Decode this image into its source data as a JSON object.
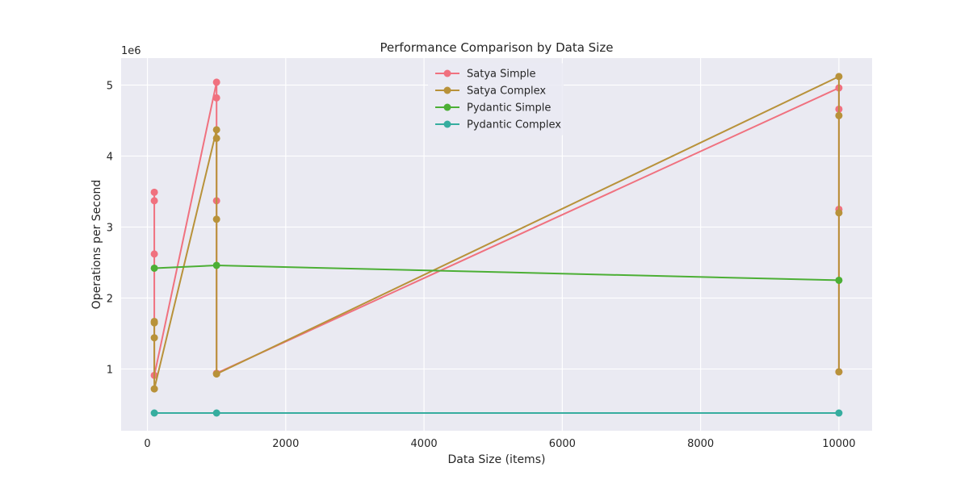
{
  "chart_data": {
    "type": "line",
    "title": "Performance Comparison by Data Size",
    "xlabel": "Data Size (items)",
    "ylabel": "Operations per Second",
    "y_offset_label": "1e6",
    "xlim": [
      -380,
      10480
    ],
    "ylim": [
      130000,
      5380000
    ],
    "xticks": [
      0,
      2000,
      4000,
      6000,
      8000,
      10000
    ],
    "yticks": [
      1000000,
      2000000,
      3000000,
      4000000,
      5000000
    ],
    "xtick_labels": [
      "0",
      "2000",
      "4000",
      "6000",
      "8000",
      "10000"
    ],
    "ytick_labels": [
      "1",
      "2",
      "3",
      "4",
      "5"
    ],
    "grid": true,
    "legend_position": "top-center",
    "series": [
      {
        "name": "Satya Simple",
        "color": "#f0717f",
        "points": [
          [
            100,
            3490000
          ],
          [
            100,
            3370000
          ],
          [
            100,
            2620000
          ],
          [
            100,
            910000
          ],
          [
            1000,
            5040000
          ],
          [
            1000,
            4820000
          ],
          [
            1000,
            3370000
          ],
          [
            1000,
            940000
          ],
          [
            10000,
            4960000
          ],
          [
            10000,
            4660000
          ],
          [
            10000,
            3250000
          ],
          [
            10000,
            960000
          ]
        ]
      },
      {
        "name": "Satya Complex",
        "color": "#b8923a",
        "points": [
          [
            100,
            1670000
          ],
          [
            100,
            1650000
          ],
          [
            100,
            1440000
          ],
          [
            100,
            720000
          ],
          [
            1000,
            4370000
          ],
          [
            1000,
            4250000
          ],
          [
            1000,
            3110000
          ],
          [
            1000,
            930000
          ],
          [
            10000,
            5120000
          ],
          [
            10000,
            4570000
          ],
          [
            10000,
            3200000
          ],
          [
            10000,
            960000
          ]
        ]
      },
      {
        "name": "Pydantic Simple",
        "color": "#4caf35",
        "points": [
          [
            100,
            2420000
          ],
          [
            1000,
            2460000
          ],
          [
            10000,
            2250000
          ]
        ]
      },
      {
        "name": "Pydantic Complex",
        "color": "#36ad9f",
        "points": [
          [
            100,
            380000
          ],
          [
            1000,
            380000
          ],
          [
            10000,
            380000
          ]
        ]
      }
    ]
  }
}
